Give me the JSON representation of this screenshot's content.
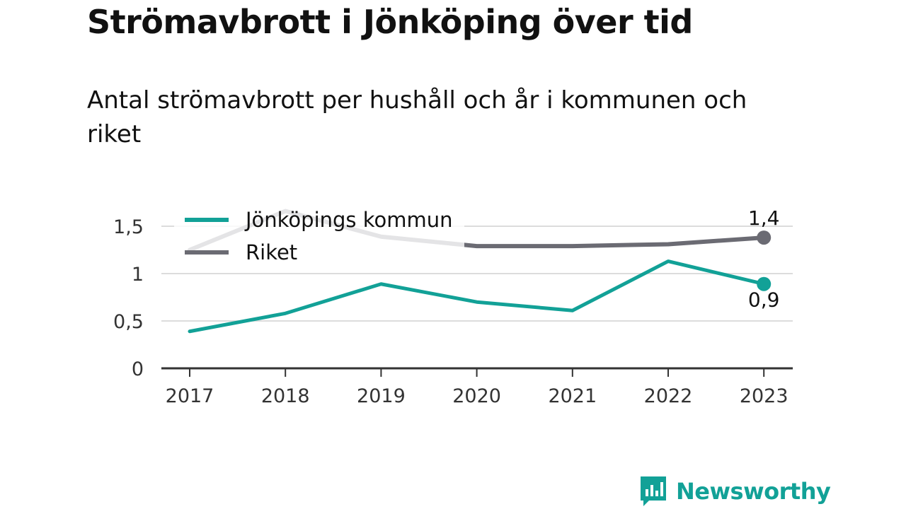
{
  "header": {
    "title": "Strömavbrott i Jönköping över tid",
    "subtitle": "Antal strömavbrott per hushåll och år i kommunen och riket"
  },
  "chart_data": {
    "type": "line",
    "title": "Strömavbrott i Jönköping över tid",
    "subtitle": "Antal strömavbrott per hushåll och år i kommunen och riket",
    "x": [
      "2017",
      "2018",
      "2019",
      "2020",
      "2021",
      "2022",
      "2023"
    ],
    "y_ticks": [
      0,
      0.5,
      1,
      1.5
    ],
    "y_tick_labels": [
      "0",
      "0,5",
      "1",
      "1,5"
    ],
    "ylim": [
      0,
      1.5
    ],
    "grid": true,
    "legend_position": "top-left",
    "series": [
      {
        "name": "Jönköpings kommun",
        "color": "#12a197",
        "values": [
          0.39,
          0.58,
          0.89,
          0.7,
          0.61,
          1.13,
          0.89
        ],
        "end_label": "0,9"
      },
      {
        "name": "Riket",
        "color": "#6b6b73",
        "values": [
          1.25,
          1.66,
          1.39,
          1.29,
          1.29,
          1.31,
          1.38
        ],
        "end_label": "1,4"
      }
    ]
  },
  "branding": {
    "logo_text": "Newsworthy",
    "logo_icon": "bar-chart-speech-bubble-icon",
    "color": "#12a197"
  }
}
